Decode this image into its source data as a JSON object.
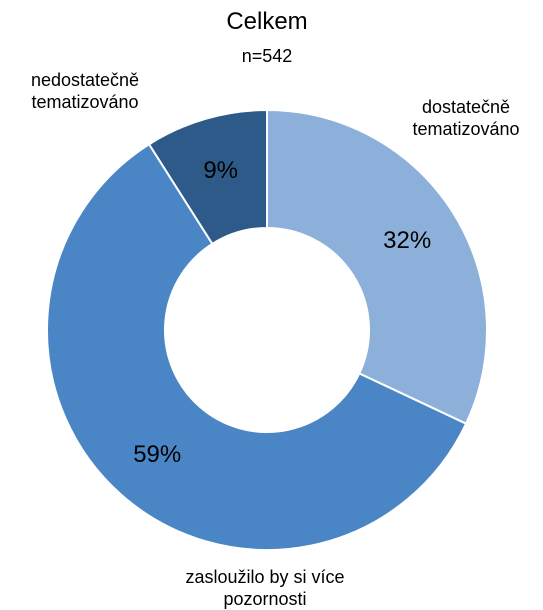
{
  "chart_data": {
    "type": "donut",
    "title": "Celkem",
    "subtitle": "n=542",
    "categories": [
      "dostatečně tematizováno",
      "zasloužilo by si více pozornosti",
      "nedostatečně tematizováno"
    ],
    "values": [
      32,
      59,
      9
    ],
    "value_labels": [
      "32%",
      "59%",
      "9%"
    ],
    "colors": [
      "#8cb0d9",
      "#4a86c5",
      "#2e5a89"
    ]
  }
}
